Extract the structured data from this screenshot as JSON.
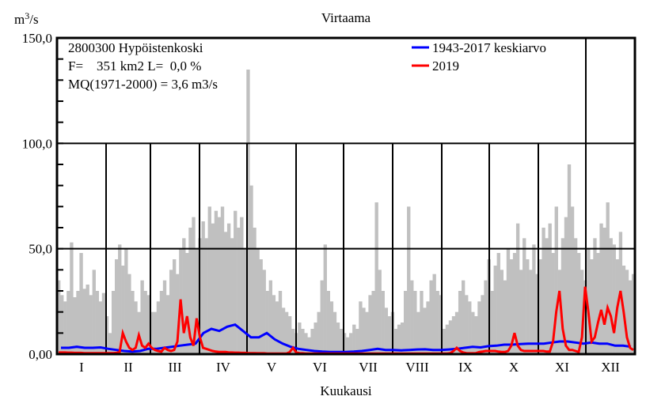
{
  "chart_data": {
    "type": "bar+line",
    "title": "Virtaama",
    "xlabel": "Kuukausi",
    "ylabel_base": "m",
    "ylabel_sup": "3",
    "ylabel_rest": "/s",
    "ylim": [
      0,
      150
    ],
    "yticks": [
      "0,00",
      "50,0",
      "100,0",
      "150,0"
    ],
    "ytick_values": [
      0,
      50,
      100,
      150
    ],
    "minor_tick_step": 10,
    "months": [
      "I",
      "II",
      "III",
      "IV",
      "V",
      "VI",
      "VII",
      "VIII",
      "IX",
      "X",
      "XI",
      "XII"
    ],
    "month_days": [
      31,
      28,
      31,
      30,
      31,
      30,
      31,
      31,
      30,
      31,
      30,
      31
    ],
    "info": {
      "station": "2800300 Hypöistenkoski",
      "area": "F=    351 km2 L=  0,0 %",
      "mq": "MQ(1971-2000) = 3,6 m3/s"
    },
    "legend": [
      {
        "name": "1943-2017 keskiarvo",
        "color": "#0000ff"
      },
      {
        "name": "2019",
        "color": "#ff0000"
      }
    ],
    "max_color": "#c0c0c0",
    "series": [
      {
        "name": "daily maximum (gray bars)",
        "resolution_days": 2.03,
        "values": [
          35,
          28,
          25,
          30,
          53,
          27,
          30,
          48,
          31,
          33,
          28,
          40,
          30,
          25,
          29,
          18,
          10,
          30,
          45,
          52,
          42,
          50,
          38,
          30,
          25,
          20,
          35,
          30,
          28,
          20,
          20,
          25,
          30,
          35,
          28,
          40,
          45,
          38,
          50,
          55,
          48,
          60,
          65,
          50,
          55,
          63,
          55,
          70,
          62,
          68,
          65,
          70,
          58,
          62,
          55,
          68,
          60,
          65,
          50,
          135,
          80,
          60,
          50,
          45,
          40,
          30,
          35,
          28,
          25,
          30,
          22,
          20,
          18,
          12,
          10,
          15,
          12,
          10,
          8,
          12,
          15,
          20,
          35,
          52,
          30,
          25,
          20,
          15,
          12,
          10,
          8,
          10,
          14,
          12,
          25,
          22,
          20,
          28,
          30,
          72,
          40,
          30,
          22,
          18,
          20,
          12,
          14,
          15,
          30,
          70,
          35,
          30,
          20,
          30,
          22,
          25,
          35,
          38,
          30,
          28,
          12,
          14,
          16,
          18,
          20,
          30,
          35,
          28,
          25,
          20,
          18,
          25,
          28,
          35,
          45,
          30,
          42,
          48,
          40,
          35,
          50,
          45,
          48,
          62,
          40,
          55,
          45,
          40,
          52,
          38,
          45,
          60,
          55,
          62,
          48,
          70,
          40,
          55,
          65,
          90,
          70,
          55,
          48,
          40,
          35,
          50,
          45,
          55,
          48,
          62,
          60,
          72,
          55,
          52,
          45,
          58,
          42,
          40,
          35,
          38
        ]
      },
      {
        "name": "1943-2017 keskiarvo",
        "resolution_days": 5,
        "values": [
          3,
          3,
          3.5,
          3,
          3,
          3.2,
          2.5,
          2,
          1.5,
          1.2,
          1.5,
          2.5,
          2.5,
          3,
          3.5,
          4,
          4.5,
          5,
          10,
          12,
          11,
          13,
          14,
          11,
          8,
          8,
          10,
          7,
          5,
          3.5,
          2.5,
          2,
          1.5,
          1.2,
          1,
          1,
          1,
          1.2,
          1.5,
          2,
          2.5,
          2,
          2,
          1.8,
          2,
          2.2,
          2.3,
          2,
          2,
          2.2,
          2.5,
          3,
          3.5,
          3.2,
          3.8,
          4,
          4.5,
          4.5,
          4.8,
          5,
          5,
          5,
          5.5,
          6,
          6,
          5.5,
          5,
          5.5,
          5,
          5,
          4,
          4,
          3.5
        ]
      },
      {
        "name": "2019",
        "resolution_days": 2.03,
        "values": [
          0.8,
          0.8,
          0.8,
          0.7,
          0.7,
          0.6,
          0.6,
          0.6,
          0.5,
          0.5,
          0.5,
          0.5,
          0.5,
          0.5,
          0.5,
          0.5,
          0.5,
          0.5,
          0.6,
          1,
          10,
          6,
          3,
          2,
          3,
          9,
          4,
          3,
          5,
          3,
          2,
          1.5,
          1.2,
          3,
          2,
          1.5,
          2,
          6,
          26,
          10,
          18,
          8,
          4,
          17,
          8,
          3,
          2.5,
          2,
          1.5,
          1.2,
          1,
          1,
          1,
          0.8,
          0.8,
          0.7,
          0.7,
          0.6,
          0.6,
          0.5,
          0.5,
          0.5,
          0.4,
          0.4,
          0.4,
          0.3,
          0.3,
          0.3,
          0.3,
          0.3,
          0.3,
          0.3,
          1,
          3,
          0.8,
          0.5,
          0.4,
          0.3,
          0.3,
          0.3,
          0.3,
          0.3,
          0.3,
          0.3,
          0.3,
          0.3,
          0.3,
          0.3,
          0.3,
          0.3,
          0.3,
          0.3,
          0.3,
          0.3,
          0.3,
          0.3,
          0.3,
          0.3,
          0.3,
          0.3,
          0.3,
          0.3,
          0.3,
          0.3,
          0.3,
          0.3,
          0.3,
          0.3,
          0.3,
          0.3,
          0.3,
          0.3,
          0.3,
          0.3,
          0.3,
          0.3,
          0.3,
          0.3,
          0.3,
          0.3,
          0.3,
          0.3,
          0.5,
          1.5,
          3,
          1.5,
          0.8,
          0.5,
          0.4,
          0.4,
          0.5,
          1,
          1.2,
          1.5,
          1.5,
          1.5,
          1.5,
          1.2,
          1,
          1,
          1.5,
          4,
          10,
          4,
          2,
          1.5,
          1.5,
          1.5,
          1.5,
          1.5,
          1.5,
          1.5,
          1.2,
          1.2,
          6,
          20,
          30,
          12,
          4,
          2,
          2,
          1.5,
          1,
          8,
          32,
          20,
          6,
          8,
          15,
          21,
          14,
          22,
          18,
          10,
          22,
          30,
          20,
          8,
          3,
          2
        ]
      }
    ]
  }
}
